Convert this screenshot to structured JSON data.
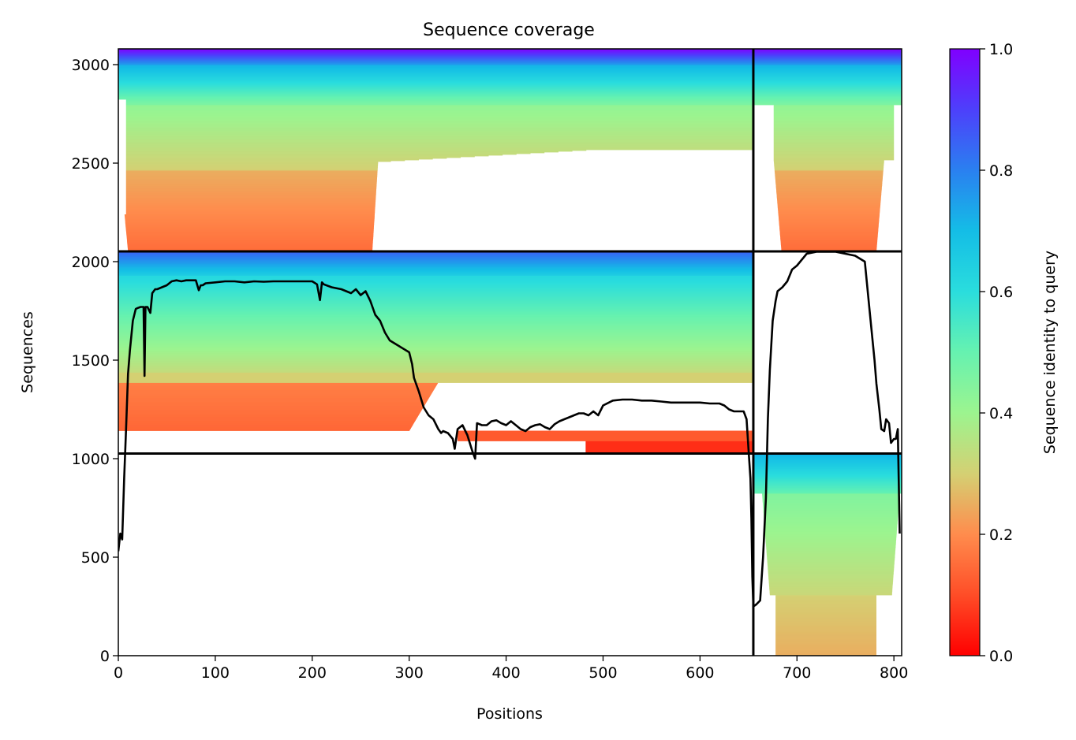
{
  "chart_data": {
    "type": "heatmap",
    "title": "Sequence coverage",
    "xlabel": "Positions",
    "ylabel": "Sequences",
    "xlim": [
      0,
      808
    ],
    "ylim": [
      0,
      3080
    ],
    "xticks": [
      0,
      100,
      200,
      300,
      400,
      500,
      600,
      700,
      800
    ],
    "yticks": [
      0,
      500,
      1000,
      1500,
      2000,
      2500,
      3000
    ],
    "colormap": "rainbow",
    "colorbar": {
      "label": "Sequence identity to query",
      "range": [
        0.0,
        1.0
      ],
      "ticks": [
        "0.0",
        "0.2",
        "0.4",
        "0.6",
        "0.8",
        "1.0"
      ]
    },
    "chain_boundaries": {
      "x": [
        655
      ],
      "y": [
        1026,
        2052
      ]
    },
    "regions": [
      {
        "name": "chain1_pair_top",
        "x": [
          0,
          655
        ],
        "y": [
          2052,
          3080
        ],
        "identity": [
          0.15,
          1.0
        ]
      },
      {
        "name": "chain2_pair_top",
        "x": [
          655,
          808
        ],
        "y": [
          2052,
          3080
        ],
        "identity": [
          0.15,
          1.0
        ]
      },
      {
        "name": "chain1_block",
        "x": [
          0,
          655
        ],
        "y": [
          1026,
          2052
        ],
        "identity": [
          0.05,
          1.0
        ]
      },
      {
        "name": "chain2_block",
        "x": [
          655,
          808
        ],
        "y": [
          0,
          1026
        ],
        "identity": [
          0.25,
          0.75
        ]
      }
    ],
    "coverage_line": {
      "color": "#000000",
      "x": [
        0,
        2,
        4,
        6,
        8,
        10,
        12,
        15,
        18,
        20,
        23,
        26,
        27,
        28,
        30,
        33,
        35,
        38,
        40,
        45,
        50,
        55,
        60,
        65,
        70,
        75,
        80,
        83,
        85,
        87,
        90,
        100,
        110,
        120,
        130,
        140,
        150,
        160,
        170,
        180,
        190,
        200,
        205,
        208,
        210,
        212,
        220,
        230,
        240,
        245,
        250,
        255,
        260,
        265,
        270,
        275,
        280,
        290,
        300,
        303,
        305,
        310,
        315,
        320,
        325,
        330,
        333,
        335,
        340,
        345,
        347,
        350,
        355,
        360,
        365,
        368,
        370,
        375,
        380,
        385,
        390,
        395,
        400,
        405,
        410,
        415,
        420,
        425,
        430,
        435,
        440,
        445,
        450,
        455,
        460,
        465,
        470,
        475,
        480,
        485,
        490,
        495,
        500,
        510,
        520,
        530,
        540,
        550,
        560,
        570,
        580,
        590,
        600,
        610,
        620,
        625,
        630,
        635,
        640,
        645,
        648,
        650,
        652,
        653,
        654,
        655,
        658,
        662,
        665,
        668,
        670,
        672,
        675,
        678,
        680,
        685,
        690,
        695,
        700,
        710,
        720,
        730,
        740,
        750,
        760,
        770,
        775,
        780,
        782,
        785,
        787,
        790,
        792,
        795,
        797,
        800,
        802,
        804,
        806,
        807
      ],
      "y": [
        530,
        620,
        590,
        900,
        1150,
        1430,
        1550,
        1700,
        1760,
        1765,
        1770,
        1770,
        1420,
        1770,
        1770,
        1740,
        1840,
        1860,
        1860,
        1870,
        1880,
        1900,
        1905,
        1900,
        1905,
        1905,
        1905,
        1855,
        1880,
        1880,
        1890,
        1895,
        1900,
        1900,
        1895,
        1900,
        1898,
        1900,
        1900,
        1900,
        1900,
        1900,
        1885,
        1805,
        1895,
        1885,
        1870,
        1860,
        1840,
        1860,
        1830,
        1850,
        1800,
        1730,
        1700,
        1640,
        1600,
        1570,
        1540,
        1480,
        1410,
        1340,
        1260,
        1220,
        1200,
        1150,
        1130,
        1140,
        1130,
        1100,
        1050,
        1150,
        1170,
        1120,
        1040,
        1000,
        1180,
        1170,
        1170,
        1190,
        1195,
        1180,
        1170,
        1190,
        1170,
        1150,
        1140,
        1160,
        1170,
        1175,
        1160,
        1150,
        1175,
        1190,
        1200,
        1210,
        1220,
        1230,
        1230,
        1220,
        1240,
        1220,
        1270,
        1295,
        1300,
        1300,
        1295,
        1295,
        1290,
        1285,
        1285,
        1285,
        1285,
        1280,
        1280,
        1270,
        1250,
        1240,
        1240,
        1240,
        1200,
        1050,
        900,
        700,
        400,
        250,
        260,
        280,
        500,
        800,
        1200,
        1450,
        1700,
        1800,
        1850,
        1870,
        1900,
        1960,
        1980,
        2040,
        2050,
        2050,
        2050,
        2040,
        2030,
        2000,
        1750,
        1500,
        1380,
        1250,
        1150,
        1140,
        1200,
        1180,
        1080,
        1100,
        1100,
        1150,
        620
      ]
    }
  }
}
